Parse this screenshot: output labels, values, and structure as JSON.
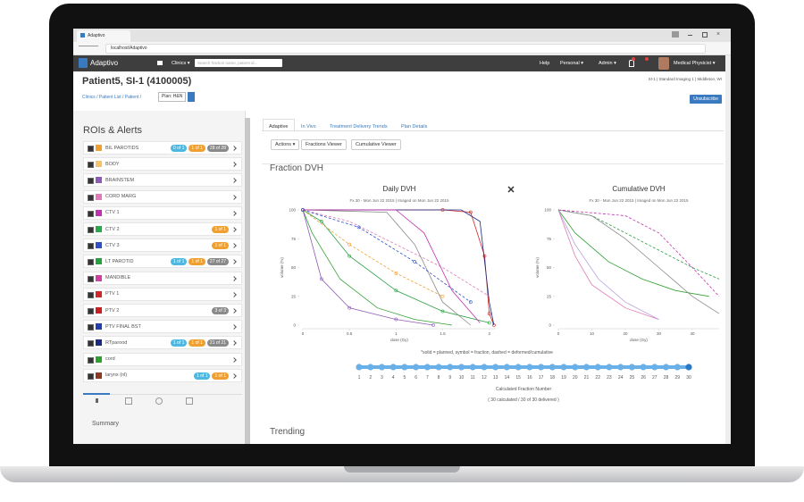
{
  "browser": {
    "tab_title": "Adaptivo",
    "url": "localhost/Adaptivo"
  },
  "navbar": {
    "brand": "Adaptivo",
    "clinics": "Clinics ▾",
    "search_placeholder": "Search fraction name, patient id...",
    "help": "Help",
    "personal": "Personal ▾",
    "admin": "Admin ▾",
    "user": "Medical Physicist ▾"
  },
  "header": {
    "title": "Patient5, SI-1 (4100005)",
    "breadcrumb": "Clinics / Patient List / Patient /",
    "plan_select": "Plan: H&N",
    "site_info": "SI-1 | Standard Imaging 1 | Middleton, WI",
    "unsubscribe": "Unsubscribe"
  },
  "left_panel": {
    "title": "ROIs & Alerts",
    "rois": [
      {
        "name": "BIL PAROTIDS",
        "color": "#f0a030",
        "badges": [
          {
            "text": "0 of 1",
            "kind": "info"
          },
          {
            "text": "1 of 1",
            "kind": "warning"
          },
          {
            "text": "28 of 28",
            "kind": "default"
          }
        ]
      },
      {
        "name": "BODY",
        "color": "#f6c26b",
        "badges": []
      },
      {
        "name": "BRAINSTEM",
        "color": "#8e5ab8",
        "badges": []
      },
      {
        "name": "CORD MARG",
        "color": "#e07ab8",
        "badges": []
      },
      {
        "name": "CTV 1",
        "color": "#c030b0",
        "badges": []
      },
      {
        "name": "CTV 2",
        "color": "#2aa84a",
        "badges": [
          {
            "text": "1 of 1",
            "kind": "warning"
          }
        ]
      },
      {
        "name": "CTV 3",
        "color": "#3050c8",
        "badges": [
          {
            "text": "1 of 1",
            "kind": "warning"
          }
        ]
      },
      {
        "name": "LT PAROTID",
        "color": "#28a040",
        "badges": [
          {
            "text": "1 of 1",
            "kind": "info"
          },
          {
            "text": "1 of 1",
            "kind": "warning"
          },
          {
            "text": "27 of 27",
            "kind": "default"
          }
        ]
      },
      {
        "name": "MANDIBLE",
        "color": "#d040a0",
        "badges": []
      },
      {
        "name": "PTV 1",
        "color": "#d02828",
        "badges": []
      },
      {
        "name": "PTV 2",
        "color": "#c82020",
        "badges": [
          {
            "text": "3 of 3",
            "kind": "default"
          }
        ]
      },
      {
        "name": "PTV FINAL BST",
        "color": "#2040b0",
        "badges": []
      },
      {
        "name": "RTparood",
        "color": "#1a2a80",
        "badges": [
          {
            "text": "1 of 1",
            "kind": "info"
          },
          {
            "text": "1 of 1",
            "kind": "warning"
          },
          {
            "text": "21 of 21",
            "kind": "default"
          }
        ]
      },
      {
        "name": "cord",
        "color": "#30a030",
        "badges": []
      },
      {
        "name": "larynx (nl)",
        "color": "#8a3a20",
        "badges": [
          {
            "text": "1 of 1",
            "kind": "info"
          },
          {
            "text": "1 of 1",
            "kind": "warning"
          }
        ]
      }
    ],
    "summary": "Summary"
  },
  "main": {
    "tabs": [
      "Adaptive",
      "In Vivo",
      "Treatment Delivery Trends",
      "Plan Details"
    ],
    "buttons": [
      "Actions ▾",
      "Fractions Viewer",
      "Cumulative Viewer"
    ],
    "section_title": "Fraction DVH",
    "note": "*solid = planned, symbol = fraction, dashed = deformed/cumulative",
    "slider_label": "Calculated Fraction Number",
    "slider_status": "( 30 calculated / 30 of 30 delivered )",
    "fractions": [
      1,
      2,
      3,
      4,
      5,
      6,
      7,
      8,
      9,
      10,
      11,
      12,
      13,
      14,
      15,
      16,
      17,
      18,
      19,
      20,
      21,
      22,
      23,
      24,
      25,
      26,
      27,
      28,
      29,
      30
    ],
    "trending": "Trending"
  },
  "chart_data": [
    {
      "type": "line",
      "title": "Daily DVH",
      "subtitle": "Fx 30 - Mon Jun 22 2015 | Imaged on Mon Jun 22 2015",
      "x_label": "dose (Gy)",
      "y_label": "volume (%)",
      "xlim": [
        0,
        2.07
      ],
      "ylim": [
        0,
        100
      ],
      "xticks": [
        0,
        0.5,
        1,
        1.5,
        2
      ],
      "yticks": [
        0,
        25,
        50,
        75,
        100
      ],
      "grid": false,
      "series": [
        {
          "color": "#d02828",
          "style": "solid",
          "markers": true,
          "x": [
            0,
            1.5,
            1.8,
            1.95,
            2.0,
            2.05
          ],
          "values": [
            100,
            100,
            98,
            60,
            10,
            0
          ]
        },
        {
          "color": "#1a2a80",
          "style": "solid",
          "markers": false,
          "x": [
            0,
            1.7,
            1.9,
            2.0,
            2.05
          ],
          "values": [
            100,
            100,
            90,
            20,
            0
          ]
        },
        {
          "color": "#30a030",
          "style": "solid",
          "markers": false,
          "x": [
            0,
            0.1,
            0.4,
            0.8,
            1.2,
            1.6
          ],
          "values": [
            100,
            80,
            40,
            15,
            5,
            0
          ]
        },
        {
          "color": "#28a040",
          "style": "solid",
          "markers": true,
          "x": [
            0,
            0.2,
            0.5,
            1.0,
            1.5,
            2.0
          ],
          "values": [
            100,
            90,
            60,
            30,
            12,
            2
          ]
        },
        {
          "color": "#e07ab8",
          "style": "dashed",
          "markers": false,
          "x": [
            0,
            0.5,
            1.0,
            1.5,
            2.0
          ],
          "values": [
            100,
            90,
            70,
            50,
            25
          ]
        },
        {
          "color": "#f0a030",
          "style": "dashed",
          "markers": true,
          "x": [
            0,
            0.5,
            1.0,
            1.5
          ],
          "values": [
            100,
            70,
            45,
            25
          ]
        },
        {
          "color": "#8a8a8a",
          "style": "solid",
          "markers": false,
          "x": [
            0,
            0.9,
            1.2,
            1.5,
            1.8
          ],
          "values": [
            100,
            98,
            70,
            20,
            0
          ]
        },
        {
          "color": "#8e5ab8",
          "style": "solid",
          "markers": true,
          "x": [
            0,
            0.2,
            0.5,
            1.0,
            1.4
          ],
          "values": [
            100,
            40,
            15,
            5,
            0
          ]
        },
        {
          "color": "#3050c8",
          "style": "dashed",
          "markers": true,
          "x": [
            0,
            0.6,
            1.2,
            1.8
          ],
          "values": [
            100,
            85,
            55,
            20
          ]
        },
        {
          "color": "#c030b0",
          "style": "solid",
          "markers": false,
          "x": [
            0,
            1.0,
            1.3,
            1.6,
            1.9
          ],
          "values": [
            100,
            100,
            80,
            30,
            2
          ]
        }
      ]
    },
    {
      "type": "line",
      "title": "Cumulative DVH",
      "subtitle": "Fx 30 - Mon Jun 22 2015 | Imaged on Mon Jun 22 2015",
      "x_label": "dose (Gy)",
      "y_label": "volume (%)",
      "xlim": [
        0,
        48
      ],
      "ylim": [
        0,
        100
      ],
      "xticks": [
        0,
        10,
        20,
        30,
        40
      ],
      "yticks": [
        0,
        25,
        50,
        75,
        100
      ],
      "grid": false,
      "series": [
        {
          "color": "#30a030",
          "style": "solid",
          "markers": false,
          "x": [
            0,
            5,
            15,
            25,
            35,
            45
          ],
          "values": [
            100,
            80,
            55,
            40,
            30,
            25
          ]
        },
        {
          "color": "#28a040",
          "style": "dashed",
          "markers": false,
          "x": [
            0,
            10,
            20,
            30,
            40,
            48
          ],
          "values": [
            100,
            95,
            80,
            65,
            50,
            40
          ]
        },
        {
          "color": "#e07ab8",
          "style": "solid",
          "markers": false,
          "x": [
            0,
            5,
            10,
            20,
            30
          ],
          "values": [
            100,
            60,
            35,
            15,
            5
          ]
        },
        {
          "color": "#8a8a8a",
          "style": "solid",
          "markers": false,
          "x": [
            0,
            10,
            20,
            30,
            40,
            48
          ],
          "values": [
            100,
            95,
            75,
            50,
            25,
            10
          ]
        },
        {
          "color": "#c030b0",
          "style": "dashed",
          "markers": false,
          "x": [
            0,
            20,
            30,
            40,
            48
          ],
          "values": [
            100,
            95,
            80,
            50,
            25
          ]
        },
        {
          "color": "#b8a0e0",
          "style": "solid",
          "markers": false,
          "x": [
            0,
            5,
            12,
            20,
            30
          ],
          "values": [
            100,
            70,
            40,
            20,
            5
          ]
        }
      ]
    }
  ]
}
